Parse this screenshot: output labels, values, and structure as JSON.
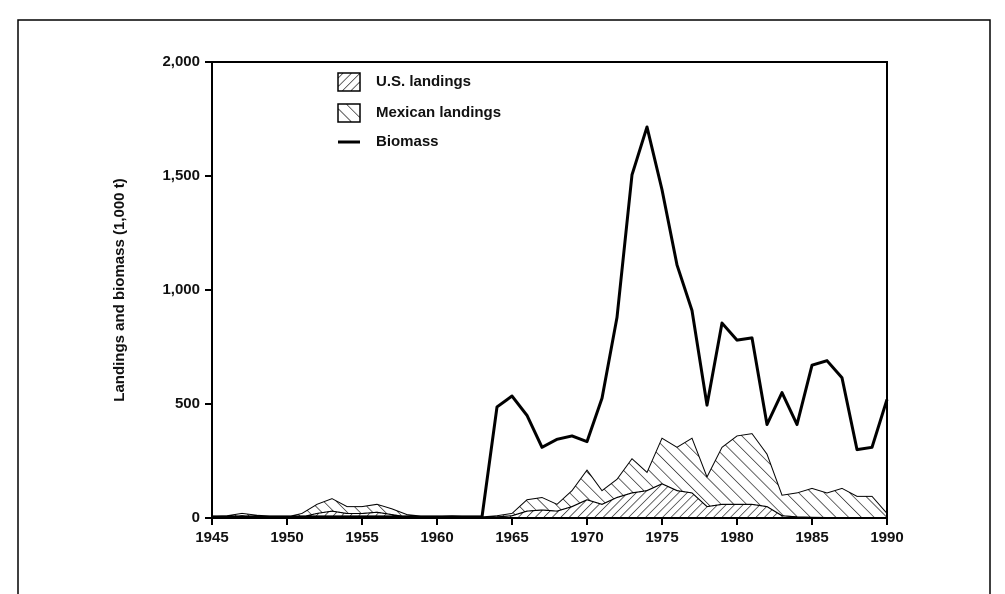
{
  "chart_data": {
    "type": "area-line",
    "ylabel": "Landings and biomass (1,000 t)",
    "x": [
      1945,
      1946,
      1947,
      1948,
      1949,
      1950,
      1951,
      1952,
      1953,
      1954,
      1955,
      1956,
      1957,
      1958,
      1959,
      1960,
      1961,
      1962,
      1963,
      1964,
      1965,
      1966,
      1967,
      1968,
      1969,
      1970,
      1971,
      1972,
      1973,
      1974,
      1975,
      1976,
      1977,
      1978,
      1979,
      1980,
      1981,
      1982,
      1983,
      1984,
      1985,
      1986,
      1987,
      1988,
      1989,
      1990
    ],
    "series": [
      {
        "name": "U.S. landings",
        "kind": "stacked-area",
        "hatch": "forward",
        "color": "#000000",
        "values": [
          5,
          5,
          10,
          5,
          5,
          3,
          5,
          20,
          30,
          20,
          20,
          25,
          15,
          5,
          3,
          3,
          3,
          2,
          2,
          5,
          10,
          30,
          35,
          30,
          50,
          80,
          60,
          90,
          110,
          120,
          150,
          120,
          110,
          50,
          60,
          60,
          60,
          50,
          10,
          5,
          3,
          2,
          2,
          2,
          2,
          2
        ]
      },
      {
        "name": "Mexican landings",
        "kind": "stacked-area",
        "hatch": "back",
        "color": "#000000",
        "values": [
          3,
          5,
          10,
          7,
          3,
          2,
          15,
          40,
          55,
          30,
          30,
          35,
          25,
          10,
          5,
          5,
          7,
          6,
          3,
          5,
          10,
          50,
          55,
          30,
          70,
          130,
          60,
          80,
          150,
          80,
          200,
          190,
          240,
          130,
          250,
          300,
          310,
          230,
          90,
          105,
          127,
          108,
          128,
          93,
          93,
          18
        ]
      },
      {
        "name": "Biomass",
        "kind": "line",
        "color": "#000000",
        "values": [
          5,
          5,
          5,
          5,
          5,
          5,
          5,
          5,
          5,
          5,
          5,
          5,
          5,
          5,
          5,
          5,
          5,
          5,
          5,
          487,
          535,
          450,
          310,
          345,
          360,
          335,
          525,
          880,
          1505,
          1715,
          1440,
          1110,
          910,
          495,
          855,
          780,
          790,
          410,
          550,
          410,
          670,
          690,
          615,
          300,
          310,
          520
        ]
      }
    ],
    "xlim": [
      1945,
      1990
    ],
    "xticks": [
      1945,
      1950,
      1955,
      1960,
      1965,
      1970,
      1975,
      1980,
      1985,
      1990
    ],
    "ylim": [
      0,
      2000
    ],
    "yticks": [
      0,
      {
        "value": 500,
        "label": "500"
      },
      {
        "value": 1000,
        "label": "1,000"
      },
      {
        "value": 1500,
        "label": "1,500"
      },
      {
        "value": 2000,
        "label": "2,000"
      }
    ],
    "grid": false,
    "legend": "top-left"
  }
}
